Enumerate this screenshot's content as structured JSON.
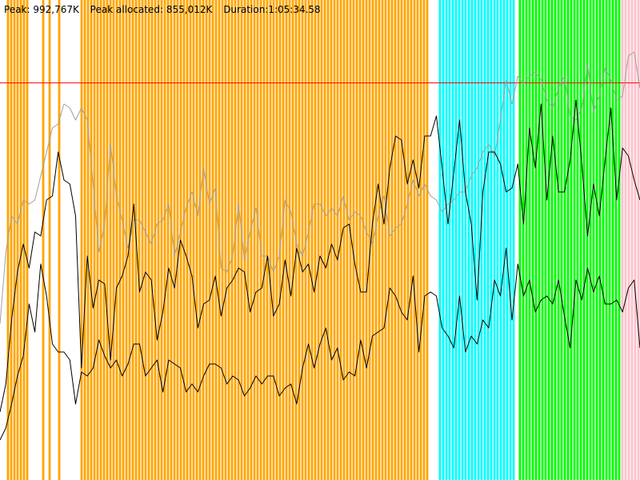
{
  "stats": {
    "peak": "Peak: 992,767K",
    "peak_allocated": "Peak allocated: 855,012K",
    "duration": "Duration:1:05:34.58"
  },
  "colors": {
    "background": "#ffffff",
    "orange": "#ffa500",
    "cyan": "#00ffff",
    "green": "#00ff00",
    "pink": "#ffc0cb",
    "limit_line": "#ff0000",
    "gray_series": "#a0a0a0",
    "black_series": "#000000"
  },
  "chart_data": {
    "type": "line",
    "ylim": [
      0,
      1200
    ],
    "y_unit": "K",
    "peak_line": 992767,
    "series": [
      {
        "color": "#a0a0a0",
        "values": [
          390,
          570,
          660,
          640,
          700,
          690,
          700,
          760,
          820,
          880,
          890,
          940,
          930,
          900,
          930,
          900,
          740,
          570,
          640,
          840,
          710,
          650,
          580,
          650,
          650,
          620,
          590,
          640,
          650,
          690,
          560,
          620,
          680,
          720,
          660,
          780,
          690,
          730,
          530,
          520,
          560,
          690,
          550,
          620,
          680,
          560,
          560,
          520,
          560,
          700,
          670,
          590,
          560,
          620,
          690,
          690,
          660,
          680,
          660,
          710,
          650,
          670,
          660,
          620,
          590,
          660,
          710,
          610,
          630,
          640,
          690,
          750,
          710,
          740,
          710,
          700,
          670,
          690,
          700,
          720,
          720,
          760,
          780,
          820,
          840,
          810,
          900,
          1000,
          940,
          1010,
          990,
          1010,
          1020,
          1000,
          950,
          930,
          980,
          1010,
          910,
          900,
          930,
          1040,
          920,
          960,
          1030,
          1000,
          950,
          960,
          1060,
          1070,
          980
        ]
      },
      {
        "color": "#000000",
        "values": [
          170,
          240,
          400,
          520,
          590,
          530,
          620,
          610,
          700,
          710,
          820,
          750,
          740,
          660,
          280,
          560,
          430,
          500,
          490,
          300,
          480,
          510,
          560,
          690,
          470,
          520,
          500,
          350,
          420,
          530,
          480,
          600,
          560,
          510,
          380,
          440,
          450,
          510,
          410,
          480,
          500,
          530,
          520,
          420,
          470,
          480,
          560,
          410,
          440,
          550,
          460,
          580,
          520,
          540,
          470,
          560,
          530,
          590,
          550,
          630,
          640,
          540,
          470,
          470,
          640,
          740,
          640,
          780,
          860,
          850,
          740,
          800,
          730,
          860,
          860,
          910,
          780,
          640,
          770,
          900,
          720,
          640,
          450,
          720,
          820,
          820,
          790,
          720,
          730,
          790,
          640,
          880,
          780,
          940,
          700,
          860,
          720,
          720,
          800,
          950,
          790,
          610,
          740,
          660,
          800,
          930,
          700,
          830,
          810,
          750,
          700
        ]
      },
      {
        "color": "#000000",
        "values": [
          100,
          130,
          190,
          260,
          310,
          440,
          370,
          540,
          460,
          340,
          320,
          320,
          300,
          190,
          270,
          260,
          280,
          350,
          310,
          280,
          300,
          260,
          290,
          340,
          340,
          260,
          280,
          300,
          220,
          300,
          290,
          280,
          220,
          240,
          220,
          260,
          290,
          290,
          280,
          240,
          260,
          250,
          210,
          230,
          260,
          240,
          260,
          260,
          210,
          230,
          240,
          190,
          280,
          340,
          280,
          340,
          380,
          300,
          330,
          250,
          270,
          260,
          350,
          280,
          360,
          370,
          380,
          480,
          460,
          420,
          400,
          510,
          320,
          460,
          470,
          460,
          380,
          360,
          330,
          460,
          320,
          360,
          340,
          400,
          380,
          500,
          460,
          580,
          400,
          540,
          460,
          500,
          420,
          450,
          460,
          440,
          500,
          410,
          330,
          500,
          450,
          530,
          470,
          510,
          440,
          440,
          450,
          420,
          480,
          500,
          330
        ]
      }
    ],
    "bands": [
      {
        "color": "#ffa500",
        "x": [
          2,
          3,
          4,
          5,
          6,
          7,
          8,
          13,
          15,
          18,
          25,
          26,
          27,
          28,
          29,
          30,
          31,
          32,
          33,
          34,
          35,
          36,
          37,
          38,
          39,
          40,
          41,
          42,
          43,
          44,
          45,
          46,
          47,
          48,
          49,
          50,
          51,
          52,
          53,
          54,
          55,
          56,
          57,
          58,
          59,
          60,
          61,
          62,
          63,
          64,
          65,
          66,
          67,
          68,
          69,
          70,
          71,
          72,
          73,
          74,
          75,
          76,
          77,
          78,
          79,
          80,
          81,
          82,
          83,
          84,
          85,
          86,
          87,
          88,
          89,
          90,
          91,
          92,
          93,
          94,
          95,
          96,
          97,
          98,
          99,
          100,
          101,
          102,
          103,
          104,
          105,
          106,
          107,
          108,
          109,
          110,
          111,
          112,
          113,
          114,
          115,
          116,
          117,
          118,
          119,
          120,
          121,
          122,
          123,
          124,
          125,
          126,
          127,
          128,
          129,
          130,
          131,
          132,
          133
        ]
      },
      {
        "color": "#00ffff",
        "x": [
          137,
          138,
          139,
          140,
          141,
          142,
          143,
          144,
          145,
          146,
          147,
          148,
          149,
          150,
          151,
          152,
          153,
          154,
          155,
          156,
          157,
          158,
          159,
          160
        ]
      },
      {
        "color": "#00ff00",
        "x": [
          162,
          163,
          164,
          165,
          166,
          167,
          168,
          169,
          170,
          171,
          172,
          173,
          174,
          175,
          176,
          177,
          178,
          179,
          180,
          181,
          182,
          183,
          184,
          185,
          186,
          187,
          188,
          189,
          190,
          191,
          192,
          193
        ]
      },
      {
        "color": "#ffc0cb",
        "x": [
          194,
          195,
          196,
          197,
          198,
          199
        ]
      }
    ]
  }
}
